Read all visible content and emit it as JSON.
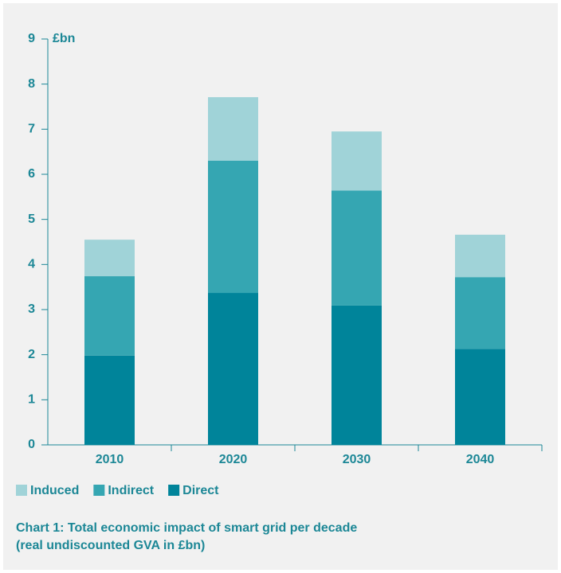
{
  "chart_data": {
    "type": "stacked_bar",
    "title": "Chart 1: Total economic impact of smart grid per decade",
    "subtitle": "(real undiscounted GVA in £bn)",
    "y_label": "£bn",
    "categories": [
      "2010",
      "2020",
      "2030",
      "2040"
    ],
    "series": [
      {
        "name": "Direct",
        "color": "#00849a",
        "values": [
          1.98,
          3.37,
          3.09,
          2.13
        ]
      },
      {
        "name": "Indirect",
        "color": "#35a6b2",
        "values": [
          1.76,
          2.93,
          2.55,
          1.59
        ]
      },
      {
        "name": "Induced",
        "color": "#a0d3d8",
        "values": [
          0.81,
          1.41,
          1.31,
          0.94
        ]
      }
    ],
    "ylim": [
      0,
      9
    ],
    "yticks": [
      0,
      1,
      2,
      3,
      4,
      5,
      6,
      7,
      8,
      9
    ],
    "grid": false
  }
}
